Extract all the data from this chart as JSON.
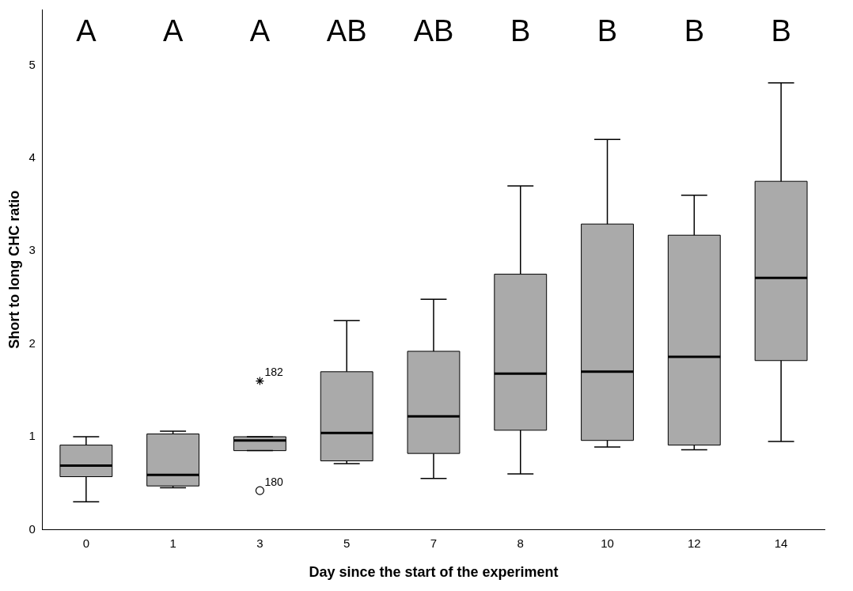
{
  "chart_data": {
    "type": "box",
    "xlabel": "Day since the start of the experiment",
    "ylabel": "Short to long CHC ratio",
    "categories": [
      "0",
      "1",
      "3",
      "5",
      "7",
      "8",
      "10",
      "12",
      "14"
    ],
    "color": "#aaaaaa",
    "boxes": [
      {
        "low": 0.3,
        "q1": 0.57,
        "median": 0.69,
        "q3": 0.91,
        "high": 1.0
      },
      {
        "low": 0.45,
        "q1": 0.47,
        "median": 0.59,
        "q3": 1.03,
        "high": 1.06
      },
      {
        "low": 0.85,
        "q1": 0.85,
        "median": 0.96,
        "q3": 1.0,
        "high": 1.0,
        "outliers": [
          1.6,
          0.42
        ]
      },
      {
        "low": 0.71,
        "q1": 0.74,
        "median": 1.04,
        "q3": 1.7,
        "high": 2.25
      },
      {
        "low": 0.55,
        "q1": 0.82,
        "median": 1.22,
        "q3": 1.92,
        "high": 2.48
      },
      {
        "low": 0.6,
        "q1": 1.07,
        "median": 1.68,
        "q3": 2.75,
        "high": 3.7
      },
      {
        "low": 0.89,
        "q1": 0.96,
        "median": 1.7,
        "q3": 3.29,
        "high": 4.2
      },
      {
        "low": 0.86,
        "q1": 0.91,
        "median": 1.86,
        "q3": 3.17,
        "high": 3.6
      },
      {
        "low": 0.95,
        "q1": 1.82,
        "median": 2.71,
        "q3": 3.75,
        "high": 4.81
      }
    ],
    "ylim": [
      0,
      5.6
    ],
    "yticks": [
      0,
      1,
      2,
      3,
      4,
      5
    ],
    "grid": false,
    "legend": false,
    "annotations": [
      "A",
      "A",
      "A",
      "AB",
      "AB",
      "B",
      "B",
      "B",
      "B",
      "182",
      "180"
    ]
  }
}
